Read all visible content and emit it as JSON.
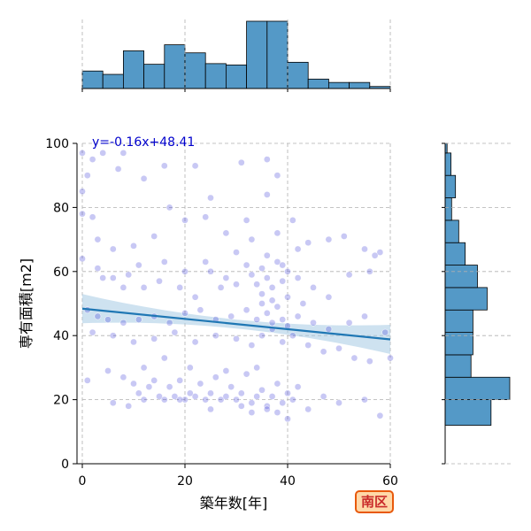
{
  "chart_data": {
    "type": "scatter",
    "xlabel": "築年数[年]",
    "ylabel": "専有面積[m2]",
    "xlim": [
      0,
      60
    ],
    "ylim": [
      0,
      100
    ],
    "x_ticks": [
      0,
      20,
      40,
      60
    ],
    "y_ticks": [
      0,
      20,
      40,
      60,
      80,
      100
    ],
    "grid": true,
    "regression": {
      "label": "y=-0.16x+48.41",
      "slope": -0.16,
      "intercept": 48.41
    },
    "badge": "南区",
    "colors": {
      "points": "#3a3ad6",
      "regression": "#1f77b4",
      "ci_band": "#a6cbe3",
      "histogram": "#5499c7",
      "equation": "#0000cc"
    },
    "marginal_x_hist": {
      "bin_edges": [
        0,
        4,
        8,
        12,
        16,
        20,
        24,
        28,
        32,
        36,
        40,
        44,
        48,
        52,
        56,
        60
      ],
      "relative_heights": [
        0.26,
        0.21,
        0.56,
        0.36,
        0.65,
        0.53,
        0.37,
        0.35,
        1.0,
        1.0,
        0.39,
        0.14,
        0.09,
        0.09,
        0.03
      ]
    },
    "marginal_y_hist": {
      "bin_edges": [
        12,
        20,
        27,
        34,
        41,
        48,
        55,
        62,
        69,
        76,
        83,
        90,
        97,
        100
      ],
      "relative_heights": [
        0.71,
        1.0,
        0.4,
        0.43,
        0.43,
        0.65,
        0.5,
        0.31,
        0.21,
        0.1,
        0.16,
        0.09,
        0.03
      ]
    },
    "points": [
      [
        0,
        97
      ],
      [
        1,
        90
      ],
      [
        2,
        95
      ],
      [
        0,
        85
      ],
      [
        4,
        97
      ],
      [
        8,
        97
      ],
      [
        7,
        92
      ],
      [
        12,
        89
      ],
      [
        16,
        93
      ],
      [
        22,
        93
      ],
      [
        25,
        83
      ],
      [
        31,
        94
      ],
      [
        36,
        95
      ],
      [
        38,
        90
      ],
      [
        36,
        84
      ],
      [
        0,
        78
      ],
      [
        2,
        77
      ],
      [
        3,
        70
      ],
      [
        6,
        67
      ],
      [
        10,
        68
      ],
      [
        14,
        71
      ],
      [
        17,
        80
      ],
      [
        20,
        76
      ],
      [
        24,
        77
      ],
      [
        28,
        72
      ],
      [
        32,
        76
      ],
      [
        38,
        72
      ],
      [
        41,
        76
      ],
      [
        44,
        69
      ],
      [
        48,
        70
      ],
      [
        51,
        71
      ],
      [
        55,
        67
      ],
      [
        58,
        66
      ],
      [
        0,
        64
      ],
      [
        3,
        61
      ],
      [
        6,
        58
      ],
      [
        9,
        59
      ],
      [
        12,
        55
      ],
      [
        15,
        57
      ],
      [
        19,
        55
      ],
      [
        22,
        52
      ],
      [
        25,
        60
      ],
      [
        28,
        58
      ],
      [
        30,
        56
      ],
      [
        32,
        62
      ],
      [
        33,
        59
      ],
      [
        34,
        56
      ],
      [
        35,
        61
      ],
      [
        36,
        58
      ],
      [
        37,
        55
      ],
      [
        38,
        63
      ],
      [
        39,
        57
      ],
      [
        40,
        60
      ],
      [
        42,
        58
      ],
      [
        45,
        55
      ],
      [
        48,
        52
      ],
      [
        52,
        59
      ],
      [
        56,
        60
      ],
      [
        57,
        65
      ],
      [
        1,
        48
      ],
      [
        3,
        46
      ],
      [
        5,
        45
      ],
      [
        8,
        44
      ],
      [
        11,
        45
      ],
      [
        14,
        46
      ],
      [
        17,
        44
      ],
      [
        20,
        47
      ],
      [
        23,
        48
      ],
      [
        26,
        45
      ],
      [
        29,
        46
      ],
      [
        32,
        48
      ],
      [
        34,
        45
      ],
      [
        35,
        50
      ],
      [
        36,
        47
      ],
      [
        37,
        44
      ],
      [
        38,
        49
      ],
      [
        39,
        45
      ],
      [
        40,
        43
      ],
      [
        42,
        46
      ],
      [
        45,
        44
      ],
      [
        48,
        42
      ],
      [
        52,
        44
      ],
      [
        55,
        46
      ],
      [
        59,
        41
      ],
      [
        2,
        41
      ],
      [
        6,
        40
      ],
      [
        10,
        38
      ],
      [
        14,
        39
      ],
      [
        18,
        41
      ],
      [
        22,
        38
      ],
      [
        26,
        40
      ],
      [
        30,
        39
      ],
      [
        33,
        37
      ],
      [
        35,
        40
      ],
      [
        37,
        42
      ],
      [
        39,
        38
      ],
      [
        41,
        40
      ],
      [
        44,
        37
      ],
      [
        47,
        35
      ],
      [
        50,
        36
      ],
      [
        53,
        33
      ],
      [
        56,
        32
      ],
      [
        60,
        33
      ],
      [
        1,
        26
      ],
      [
        5,
        29
      ],
      [
        8,
        27
      ],
      [
        10,
        25
      ],
      [
        11,
        22
      ],
      [
        12,
        20
      ],
      [
        13,
        24
      ],
      [
        14,
        26
      ],
      [
        15,
        21
      ],
      [
        16,
        20
      ],
      [
        17,
        24
      ],
      [
        18,
        21
      ],
      [
        19,
        26
      ],
      [
        20,
        20
      ],
      [
        21,
        22
      ],
      [
        22,
        21
      ],
      [
        23,
        25
      ],
      [
        24,
        20
      ],
      [
        25,
        22
      ],
      [
        26,
        27
      ],
      [
        27,
        20
      ],
      [
        28,
        21
      ],
      [
        29,
        24
      ],
      [
        30,
        20
      ],
      [
        31,
        22
      ],
      [
        32,
        28
      ],
      [
        33,
        19
      ],
      [
        34,
        21
      ],
      [
        35,
        23
      ],
      [
        36,
        18
      ],
      [
        37,
        21
      ],
      [
        38,
        25
      ],
      [
        39,
        19
      ],
      [
        40,
        22
      ],
      [
        41,
        20
      ],
      [
        42,
        24
      ],
      [
        44,
        17
      ],
      [
        47,
        21
      ],
      [
        50,
        19
      ],
      [
        55,
        20
      ],
      [
        58,
        15
      ],
      [
        6,
        19
      ],
      [
        9,
        18
      ],
      [
        19,
        20
      ],
      [
        25,
        17
      ],
      [
        31,
        18
      ],
      [
        33,
        16
      ],
      [
        36,
        17
      ],
      [
        38,
        16
      ],
      [
        40,
        14
      ],
      [
        21,
        30
      ],
      [
        28,
        29
      ],
      [
        34,
        30
      ],
      [
        12,
        30
      ],
      [
        16,
        33
      ],
      [
        4,
        58
      ],
      [
        8,
        55
      ],
      [
        30,
        66
      ],
      [
        33,
        70
      ],
      [
        36,
        65
      ],
      [
        39,
        62
      ],
      [
        42,
        67
      ],
      [
        35,
        53
      ],
      [
        37,
        51
      ],
      [
        40,
        52
      ],
      [
        43,
        50
      ],
      [
        27,
        55
      ],
      [
        24,
        63
      ],
      [
        20,
        60
      ],
      [
        16,
        63
      ],
      [
        11,
        62
      ]
    ]
  }
}
